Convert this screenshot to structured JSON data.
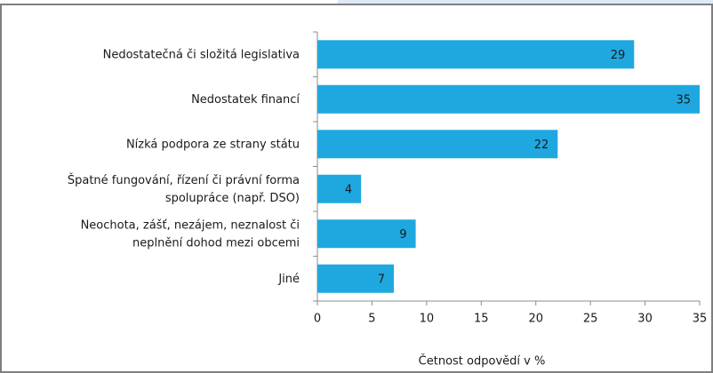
{
  "chart_data": {
    "type": "bar",
    "orientation": "horizontal",
    "categories": [
      [
        "Nedostatečná či složitá legislativa"
      ],
      [
        "Nedostatek financí"
      ],
      [
        "Nízká podpora ze strany státu"
      ],
      [
        "Špatné fungování, řízení či právní forma",
        "spolupráce (např. DSO)"
      ],
      [
        "Neochota, zášť, nezájem, neznalost či",
        "neplnění dohod mezi obcemi"
      ],
      [
        "Jiné"
      ]
    ],
    "values": [
      29,
      35,
      22,
      4,
      9,
      7
    ],
    "color": "#1fa8e0",
    "xlabel": "Četnost odpovědí v %",
    "xlim": [
      0,
      35
    ],
    "xticks": [
      0,
      5,
      10,
      15,
      20,
      25,
      30,
      35
    ],
    "grid": false
  }
}
